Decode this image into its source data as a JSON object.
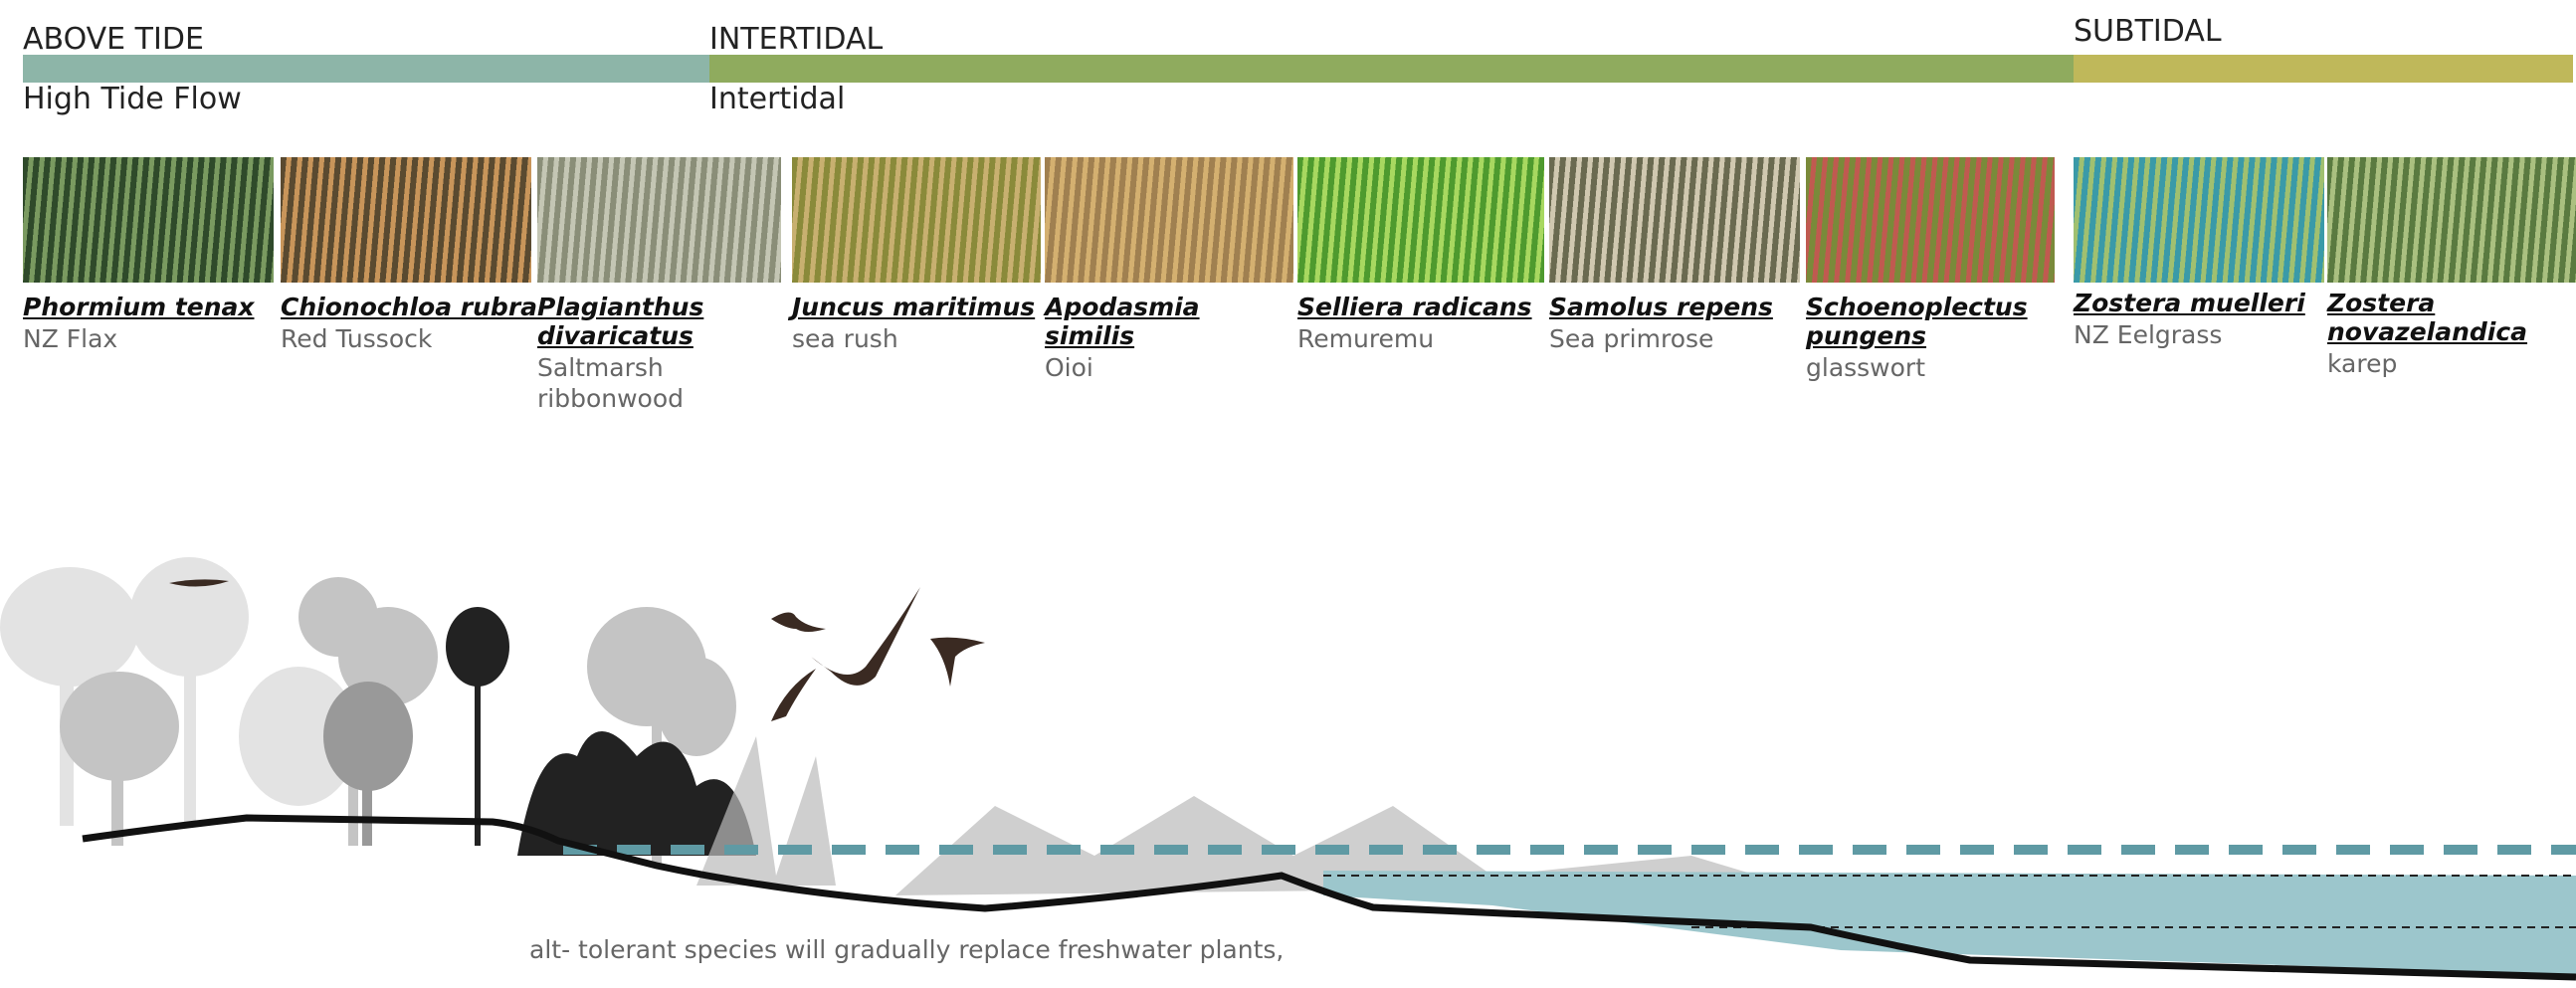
{
  "zones": [
    {
      "label": "ABOVE TIDE",
      "sublabel": "High Tide Flow"
    },
    {
      "label": "INTERTIDAL",
      "sublabel": "Intertidal"
    },
    {
      "label": "SUBTIDAL"
    }
  ],
  "species": [
    {
      "latin": "Phormium tenax",
      "common": "NZ Flax"
    },
    {
      "latin": "Chionochloa rubra",
      "common": "Red Tussock"
    },
    {
      "latin": "Plagianthus divaricatus",
      "common": "Saltmarsh ribbonwood"
    },
    {
      "latin": "Juncus maritimus",
      "common": "sea rush"
    },
    {
      "latin": "Apodasmia similis",
      "common": "Oioi"
    },
    {
      "latin": "Selliera radicans",
      "common": "Remuremu"
    },
    {
      "latin": "Samolus repens",
      "common": "Sea primrose"
    },
    {
      "latin": "Schoenoplectus pungens",
      "common": "glasswort"
    },
    {
      "latin": "Zostera muelleri",
      "common": "NZ Eelgrass"
    },
    {
      "latin": "Zostera novazelandica",
      "common": "karep"
    }
  ],
  "caption": "alt- tolerant species will gradually replace freshwater plants,"
}
